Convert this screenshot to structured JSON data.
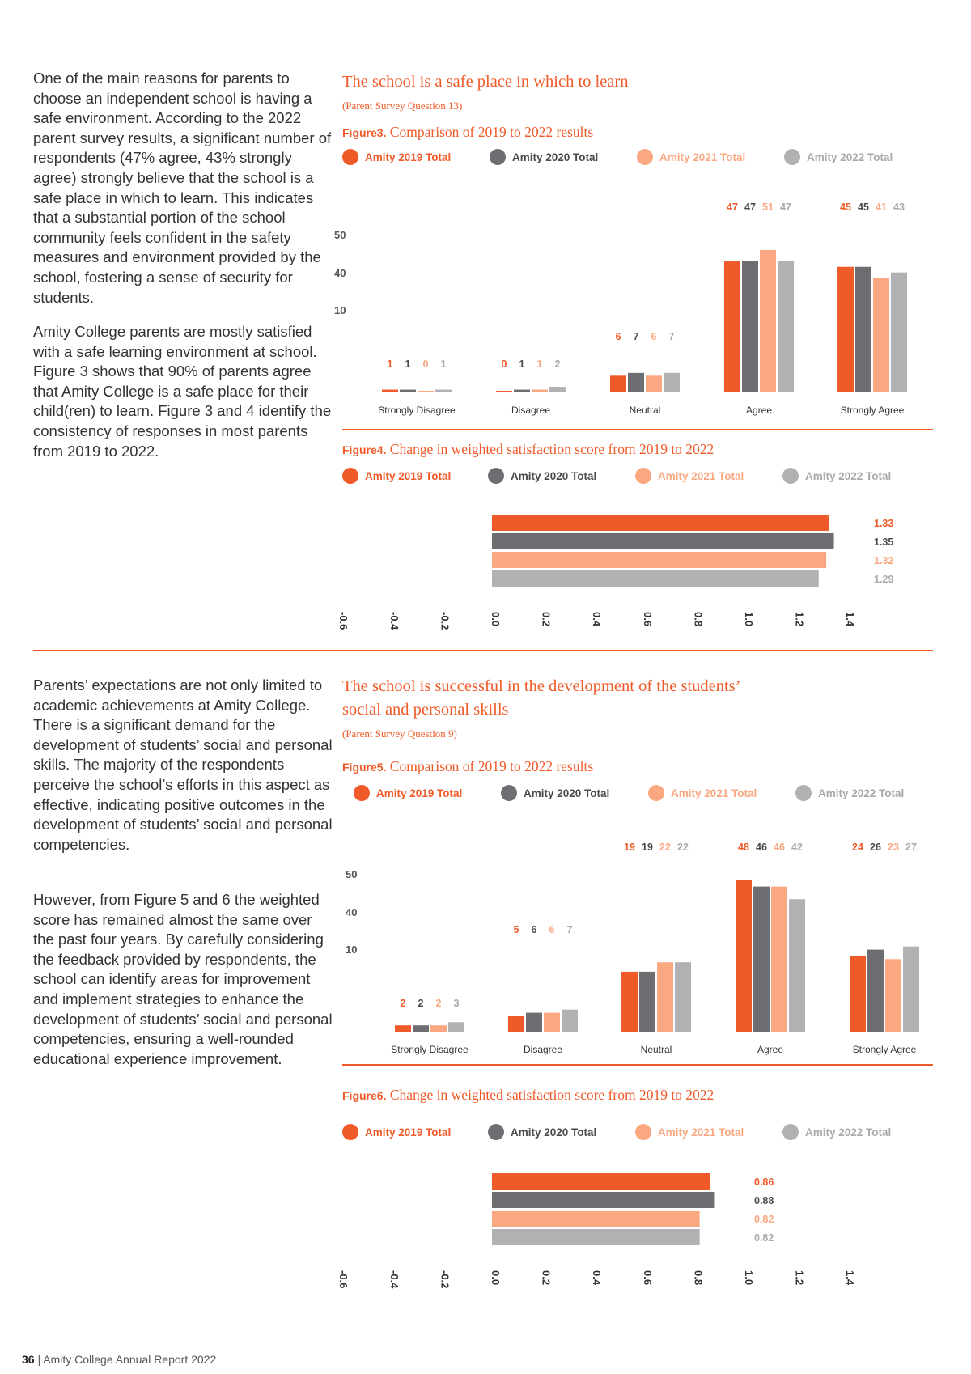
{
  "colors": {
    "c2019": "#f05a28",
    "c2020": "#6d6e71",
    "c2021": "#f9a882",
    "c2022": "#b1b1b4",
    "accent": "#f05a28"
  },
  "legend": [
    "Amity 2019 Total",
    "Amity 2020 Total",
    "Amity 2021 Total",
    "Amity 2022 Total"
  ],
  "section1": {
    "para1": "One of the main reasons for parents to choose an independent school is having a safe environment. According to the 2022 parent survey results, a significant number of respondents (47% agree, 43% strongly agree) strongly believe that the school is a safe place in which to learn. This indicates that a substantial portion of the school community feels confident in the safety measures and environment provided by the school, fostering a sense of security for students.",
    "para2": "Amity College parents are mostly satisfied with a safe learning environment at school. Figure 3 shows that 90% of parents agree that Amity College is a safe place for their child(ren) to learn. Figure 3 and 4 identify the consistency of responses in most parents from 2019 to 2022.",
    "title": "The school is a safe place in which to learn",
    "subtitle": "(Parent Survey Question 13)",
    "fig3_label": "Figure3.",
    "fig3_title": "Comparison of 2019 to 2022 results",
    "fig4_label": "Figure4.",
    "fig4_title": "Change in weighted satisfaction score from 2019 to 2022"
  },
  "section2": {
    "para1": "Parents’ expectations are not only limited to academic achievements at Amity College. There is a significant demand for the development of students’ social and personal skills. The majority of the respondents perceive the school’s efforts in this aspect as effective, indicating positive outcomes in the development of students’ social and personal competencies.",
    "para2": "However, from Figure 5 and 6 the weighted score has remained almost the same over the past four years. By carefully considering the feedback provided by respondents, the school can identify areas for improvement and implement strategies to enhance the development of students’ social and personal competencies, ensuring a well-rounded educational experience improvement.",
    "title_line1": "The school is successful in the development of the students’",
    "title_line2": "social and personal skills",
    "subtitle": "(Parent Survey Question 9)",
    "fig5_label": "Figure5.",
    "fig5_title": "Comparison of 2019 to 2022 results",
    "fig6_label": "Figure6.",
    "fig6_title": "Change in weighted satisfaction score from 2019 to 2022"
  },
  "footer": {
    "page": "36",
    "text": "| Amity College Annual Report 2022"
  },
  "chart_data": [
    {
      "id": "figure3",
      "type": "bar",
      "categories": [
        "Strongly Disagree",
        "Disagree",
        "Neutral",
        "Agree",
        "Strongly Agree"
      ],
      "series": [
        {
          "name": "Amity 2019 Total",
          "values": [
            1,
            0,
            6,
            47,
            45
          ]
        },
        {
          "name": "Amity 2020 Total",
          "values": [
            1,
            1,
            7,
            47,
            45
          ]
        },
        {
          "name": "Amity 2021 Total",
          "values": [
            0,
            1,
            6,
            51,
            41
          ]
        },
        {
          "name": "Amity 2022 Total",
          "values": [
            1,
            2,
            7,
            47,
            43
          ]
        }
      ],
      "y_ticks": [
        "50",
        "40",
        "10"
      ],
      "ylim": [
        0,
        55
      ]
    },
    {
      "id": "figure4",
      "type": "bar",
      "orientation": "horizontal",
      "series": [
        {
          "name": "Amity 2019 Total",
          "value": 1.33,
          "label": "1.33"
        },
        {
          "name": "Amity 2020 Total",
          "value": 1.35,
          "label": "1.35"
        },
        {
          "name": "Amity 2021 Total",
          "value": 1.32,
          "label": "1.32"
        },
        {
          "name": "Amity 2022 Total",
          "value": 1.29,
          "label": "1.29"
        }
      ],
      "x_ticks": [
        "-0.6",
        "-0.4",
        "-0.2",
        "0.0",
        "0.2",
        "0.4",
        "0.6",
        "0.8",
        "1.0",
        "1.2",
        "1.4"
      ],
      "xlim": [
        -0.6,
        1.4
      ]
    },
    {
      "id": "figure5",
      "type": "bar",
      "categories": [
        "Strongly Disagree",
        "Disagree",
        "Neutral",
        "Agree",
        "Strongly Agree"
      ],
      "series": [
        {
          "name": "Amity 2019 Total",
          "values": [
            2,
            5,
            19,
            48,
            24
          ]
        },
        {
          "name": "Amity 2020 Total",
          "values": [
            2,
            6,
            19,
            46,
            26
          ]
        },
        {
          "name": "Amity 2021 Total",
          "values": [
            2,
            6,
            22,
            46,
            23
          ]
        },
        {
          "name": "Amity 2022 Total",
          "values": [
            3,
            7,
            22,
            42,
            27
          ]
        }
      ],
      "y_ticks": [
        "50",
        "40",
        "10"
      ],
      "ylim": [
        0,
        55
      ]
    },
    {
      "id": "figure6",
      "type": "bar",
      "orientation": "horizontal",
      "series": [
        {
          "name": "Amity 2019 Total",
          "value": 0.86,
          "label": "0.86"
        },
        {
          "name": "Amity 2020 Total",
          "value": 0.88,
          "label": "0.88"
        },
        {
          "name": "Amity 2021 Total",
          "value": 0.82,
          "label": "0.82"
        },
        {
          "name": "Amity 2022 Total",
          "value": 0.82,
          "label": "0.82"
        }
      ],
      "x_ticks": [
        "-0.6",
        "-0.4",
        "-0.2",
        "0.0",
        "0.2",
        "0.4",
        "0.6",
        "0.8",
        "1.0",
        "1.2",
        "1.4"
      ],
      "xlim": [
        -0.6,
        1.4
      ]
    }
  ]
}
